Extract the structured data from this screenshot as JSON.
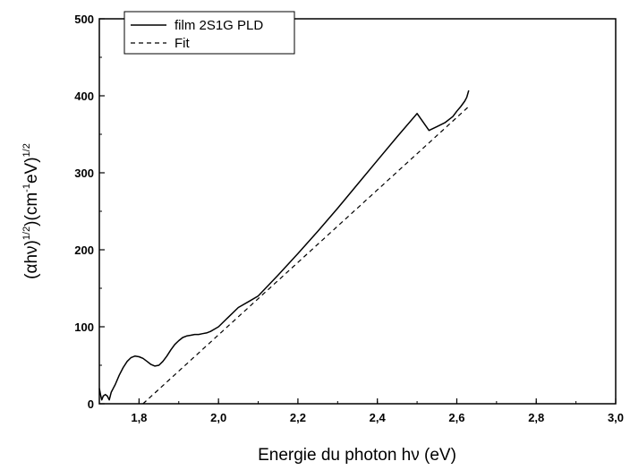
{
  "chart_data": {
    "type": "line",
    "xlabel": "Energie du photon hν (eV)",
    "ylabel": {
      "part1": "(αhν)",
      "sup1": "1/2",
      "part2": ")(cm",
      "sup2": "-1",
      "part3": "eV)",
      "sup3": "1/2"
    },
    "xlim": [
      1.7,
      3.0
    ],
    "ylim": [
      0,
      500
    ],
    "x_ticks": [
      1.8,
      2.0,
      2.2,
      2.4,
      2.6,
      2.8,
      3.0
    ],
    "x_tick_labels": [
      "1,8",
      "2,0",
      "2,2",
      "2,4",
      "2,6",
      "2,8",
      "3,0"
    ],
    "y_ticks": [
      0,
      100,
      200,
      300,
      400,
      500
    ],
    "y_tick_labels": [
      "0",
      "100",
      "200",
      "300",
      "400",
      "500"
    ],
    "grid": false,
    "legend_position": "top-left",
    "series": [
      {
        "name": "film 2S1G PLD",
        "style": "solid",
        "color": "#000000",
        "x": [
          1.7,
          1.703,
          1.706,
          1.71,
          1.715,
          1.72,
          1.725,
          1.73,
          1.74,
          1.75,
          1.76,
          1.77,
          1.78,
          1.79,
          1.8,
          1.81,
          1.82,
          1.83,
          1.84,
          1.85,
          1.86,
          1.87,
          1.88,
          1.89,
          1.9,
          1.91,
          1.92,
          1.93,
          1.94,
          1.95,
          1.96,
          1.97,
          1.98,
          1.99,
          2.0,
          2.02,
          2.05,
          2.08,
          2.1,
          2.15,
          2.2,
          2.25,
          2.3,
          2.35,
          2.4,
          2.45,
          2.5,
          2.53,
          2.55,
          2.57,
          2.59,
          2.6,
          2.61,
          2.62,
          2.625,
          2.63
        ],
        "y": [
          20,
          12,
          5,
          10,
          12,
          10,
          5,
          15,
          25,
          37,
          47,
          55,
          60,
          62,
          61,
          59,
          55,
          51,
          49,
          50,
          55,
          62,
          70,
          77,
          82,
          86,
          88,
          89,
          90,
          90,
          91,
          92,
          94,
          97,
          100,
          110,
          125,
          134,
          140,
          167,
          195,
          224,
          254,
          285,
          316,
          347,
          377,
          355,
          360,
          365,
          373,
          380,
          386,
          393,
          398,
          407
        ]
      },
      {
        "name": "Fit",
        "style": "dashed",
        "color": "#000000",
        "x": [
          1.81,
          2.63
        ],
        "y": [
          0,
          386
        ]
      }
    ]
  }
}
